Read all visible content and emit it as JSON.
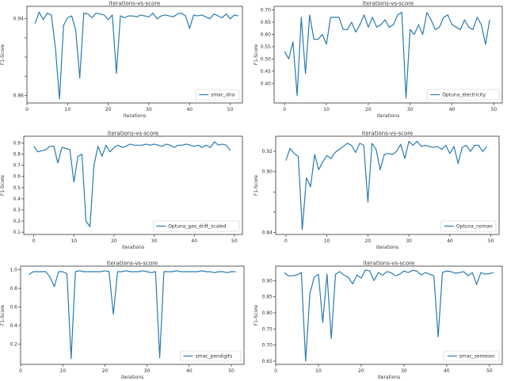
{
  "colors": {
    "line": "#2a7ab0",
    "axis": "#333333"
  },
  "chart_data": [
    {
      "type": "line",
      "title": "iterations-vs-score",
      "xlabel": "iterations",
      "ylabel": "F1-Score",
      "legend": {
        "label": "smac_dna",
        "placement": "bottom-right"
      },
      "xlim": [
        0,
        53
      ],
      "ylim": [
        0.852,
        0.953
      ],
      "xticks": [
        0,
        10,
        20,
        30,
        40,
        50
      ],
      "xtick_labels": [
        "0",
        "10",
        "20",
        "30",
        "40",
        "50"
      ],
      "yticks": [
        0.86,
        0.88,
        0.9,
        0.92,
        0.94
      ],
      "ytick_labels": [
        "0.86",
        "",
        "",
        "",
        "0.94"
      ],
      "x": [
        2,
        3,
        4,
        5,
        6,
        7,
        8,
        9,
        10,
        11,
        12,
        13,
        14,
        15,
        16,
        17,
        18,
        19,
        20,
        21,
        22,
        23,
        24,
        25,
        26,
        27,
        28,
        29,
        30,
        31,
        32,
        33,
        34,
        35,
        36,
        37,
        38,
        39,
        40,
        41,
        42,
        43,
        44,
        45,
        46,
        47,
        48,
        49,
        50,
        51,
        52
      ],
      "values": [
        0.935,
        0.947,
        0.939,
        0.946,
        0.944,
        0.91,
        0.856,
        0.933,
        0.941,
        0.943,
        0.928,
        0.878,
        0.946,
        0.945,
        0.941,
        0.946,
        0.945,
        0.944,
        0.939,
        0.944,
        0.883,
        0.943,
        0.941,
        0.943,
        0.943,
        0.942,
        0.944,
        0.943,
        0.942,
        0.946,
        0.94,
        0.943,
        0.944,
        0.943,
        0.942,
        0.945,
        0.946,
        0.943,
        0.93,
        0.944,
        0.943,
        0.944,
        0.942,
        0.94,
        0.945,
        0.943,
        0.941,
        0.945,
        0.94,
        0.944,
        0.943
      ]
    },
    {
      "type": "line",
      "title": "iterations-vs-score",
      "xlabel": "iterations",
      "ylabel": "F1-Score",
      "legend": {
        "label": "Optuna_electricity",
        "placement": "bottom-right"
      },
      "xlim": [
        -2.5,
        52
      ],
      "ylim": [
        0.32,
        0.715
      ],
      "xticks": [
        0,
        10,
        20,
        30,
        40,
        50
      ],
      "xtick_labels": [
        "0",
        "10",
        "20",
        "30",
        "40",
        "50"
      ],
      "yticks": [
        0.4,
        0.45,
        0.5,
        0.55,
        0.6,
        0.65,
        0.7
      ],
      "ytick_labels": [
        "0.40",
        "0.45",
        "0.50",
        "0.55",
        "0.60",
        "0.65",
        "0.70"
      ],
      "x": [
        0,
        1,
        2,
        3,
        4,
        5,
        6,
        7,
        8,
        9,
        10,
        11,
        12,
        13,
        14,
        15,
        16,
        17,
        18,
        19,
        20,
        21,
        22,
        23,
        24,
        25,
        26,
        27,
        28,
        29,
        30,
        31,
        32,
        33,
        34,
        35,
        36,
        37,
        38,
        39,
        40,
        41,
        42,
        43,
        44,
        45,
        46,
        47,
        48,
        49
      ],
      "values": [
        0.53,
        0.5,
        0.57,
        0.35,
        0.67,
        0.44,
        0.68,
        0.58,
        0.58,
        0.6,
        0.56,
        0.67,
        0.67,
        0.67,
        0.62,
        0.62,
        0.65,
        0.61,
        0.64,
        0.68,
        0.63,
        0.67,
        0.63,
        0.64,
        0.66,
        0.63,
        0.64,
        0.68,
        0.69,
        0.34,
        0.62,
        0.6,
        0.64,
        0.6,
        0.69,
        0.66,
        0.62,
        0.63,
        0.67,
        0.68,
        0.64,
        0.63,
        0.62,
        0.66,
        0.63,
        0.62,
        0.67,
        0.64,
        0.56,
        0.66
      ]
    },
    {
      "type": "line",
      "title": "iterations-vs-score",
      "xlabel": "iterations",
      "ylabel": "F1-Score",
      "legend": {
        "label": "Optuna_gas_drift_scaled",
        "placement": "bottom-right"
      },
      "xlim": [
        -2.5,
        52
      ],
      "ylim": [
        0.08,
        0.96
      ],
      "xticks": [
        0,
        10,
        20,
        30,
        40,
        50
      ],
      "xtick_labels": [
        "0",
        "10",
        "20",
        "30",
        "40",
        "50"
      ],
      "yticks": [
        0.1,
        0.2,
        0.3,
        0.4,
        0.5,
        0.6,
        0.7,
        0.8,
        0.9
      ],
      "ytick_labels": [
        "0.1",
        "0.2",
        "0.3",
        "0.4",
        "0.5",
        "0.6",
        "0.7",
        "0.8",
        "0.9"
      ],
      "x": [
        0,
        1,
        2,
        3,
        4,
        5,
        6,
        7,
        8,
        9,
        10,
        11,
        12,
        13,
        14,
        15,
        16,
        17,
        18,
        19,
        20,
        21,
        22,
        23,
        24,
        25,
        26,
        27,
        28,
        29,
        30,
        31,
        32,
        33,
        34,
        35,
        36,
        37,
        38,
        39,
        40,
        41,
        42,
        43,
        44,
        45,
        46,
        47,
        48,
        49
      ],
      "values": [
        0.87,
        0.82,
        0.83,
        0.84,
        0.87,
        0.87,
        0.72,
        0.86,
        0.85,
        0.84,
        0.55,
        0.78,
        0.8,
        0.2,
        0.15,
        0.7,
        0.87,
        0.78,
        0.88,
        0.82,
        0.86,
        0.88,
        0.86,
        0.87,
        0.89,
        0.88,
        0.88,
        0.88,
        0.89,
        0.88,
        0.89,
        0.88,
        0.87,
        0.89,
        0.88,
        0.86,
        0.88,
        0.88,
        0.89,
        0.88,
        0.87,
        0.88,
        0.86,
        0.88,
        0.86,
        0.91,
        0.88,
        0.89,
        0.88,
        0.83
      ]
    },
    {
      "type": "line",
      "title": "iterations-vs-score",
      "xlabel": "iterations",
      "ylabel": "F1-Score",
      "legend": {
        "label": "Optuna_nomao",
        "placement": "bottom-right"
      },
      "xlim": [
        -2.5,
        52
      ],
      "ylim": [
        0.838,
        0.935
      ],
      "xticks": [
        0,
        10,
        20,
        30,
        40,
        50
      ],
      "xtick_labels": [
        "0",
        "10",
        "20",
        "30",
        "40",
        "50"
      ],
      "yticks": [
        0.84,
        0.86,
        0.88,
        0.9,
        0.92
      ],
      "ytick_labels": [
        "0.84",
        "",
        "",
        "0.90",
        "0.92"
      ],
      "x": [
        0,
        1,
        2,
        3,
        4,
        5,
        6,
        7,
        8,
        9,
        10,
        11,
        12,
        13,
        14,
        15,
        16,
        17,
        18,
        19,
        20,
        21,
        22,
        23,
        24,
        25,
        26,
        27,
        28,
        29,
        30,
        31,
        32,
        33,
        34,
        35,
        36,
        37,
        38,
        39,
        40,
        41,
        42,
        43,
        44,
        45,
        46,
        47,
        48,
        49
      ],
      "values": [
        0.911,
        0.923,
        0.918,
        0.915,
        0.843,
        0.894,
        0.885,
        0.917,
        0.902,
        0.91,
        0.916,
        0.913,
        0.919,
        0.922,
        0.925,
        0.928,
        0.926,
        0.919,
        0.928,
        0.926,
        0.87,
        0.928,
        0.922,
        0.902,
        0.917,
        0.918,
        0.917,
        0.92,
        0.927,
        0.913,
        0.93,
        0.926,
        0.93,
        0.925,
        0.926,
        0.925,
        0.924,
        0.925,
        0.922,
        0.926,
        0.918,
        0.925,
        0.908,
        0.924,
        0.926,
        0.92,
        0.926,
        0.926,
        0.92,
        0.925
      ]
    },
    {
      "type": "line",
      "title": "iterations-vs-score",
      "xlabel": "iterations",
      "ylabel": "F1-Score",
      "legend": {
        "label": "smac_pendigits",
        "placement": "bottom-right"
      },
      "xlim": [
        0,
        53
      ],
      "ylim": [
        -0.02,
        1.04
      ],
      "xticks": [
        0,
        10,
        20,
        30,
        40,
        50
      ],
      "xtick_labels": [
        "0",
        "10",
        "20",
        "30",
        "40",
        "50"
      ],
      "yticks": [
        0.2,
        0.4,
        0.6,
        0.8,
        1.0
      ],
      "ytick_labels": [
        "0.2",
        "0.4",
        "0.6",
        "0.8",
        "1.0"
      ],
      "x": [
        2,
        3,
        4,
        5,
        6,
        7,
        8,
        9,
        10,
        11,
        12,
        13,
        14,
        15,
        16,
        17,
        18,
        19,
        20,
        21,
        22,
        23,
        24,
        25,
        26,
        27,
        28,
        29,
        30,
        31,
        32,
        33,
        34,
        35,
        36,
        37,
        38,
        39,
        40,
        41,
        42,
        43,
        44,
        45,
        46,
        47,
        48,
        49,
        50,
        51
      ],
      "values": [
        0.95,
        0.98,
        0.98,
        0.98,
        0.98,
        0.92,
        0.82,
        0.98,
        0.98,
        0.96,
        0.04,
        0.98,
        0.99,
        0.98,
        0.98,
        0.98,
        0.98,
        0.98,
        0.99,
        0.98,
        0.52,
        0.98,
        0.98,
        0.99,
        0.98,
        0.98,
        0.98,
        0.99,
        0.98,
        0.97,
        0.98,
        0.05,
        0.98,
        0.98,
        0.98,
        0.99,
        0.98,
        0.98,
        0.98,
        0.98,
        0.98,
        0.99,
        0.98,
        0.98,
        0.97,
        0.98,
        0.98,
        0.97,
        0.98,
        0.98
      ]
    },
    {
      "type": "line",
      "title": "iterations-vs-score",
      "xlabel": "iterations",
      "ylabel": "F1-Score",
      "legend": {
        "label": "smac_semeion",
        "placement": "bottom-right"
      },
      "xlim": [
        0,
        53
      ],
      "ylim": [
        0.64,
        0.945
      ],
      "xticks": [
        0,
        10,
        20,
        30,
        40,
        50
      ],
      "xtick_labels": [
        "0",
        "10",
        "20",
        "30",
        "40",
        "50"
      ],
      "yticks": [
        0.65,
        0.7,
        0.75,
        0.8,
        0.85,
        0.9
      ],
      "ytick_labels": [
        "0.65",
        "0.70",
        "0.75",
        "0.80",
        "0.85",
        "0.90"
      ],
      "x": [
        2,
        3,
        4,
        5,
        6,
        7,
        8,
        9,
        10,
        11,
        12,
        13,
        14,
        15,
        16,
        17,
        18,
        19,
        20,
        21,
        22,
        23,
        24,
        25,
        26,
        27,
        28,
        29,
        30,
        31,
        32,
        33,
        34,
        35,
        36,
        37,
        38,
        39,
        40,
        41,
        42,
        43,
        44,
        45,
        46,
        47,
        48,
        49,
        50,
        51
      ],
      "values": [
        0.925,
        0.915,
        0.915,
        0.918,
        0.925,
        0.65,
        0.86,
        0.91,
        0.92,
        0.77,
        0.92,
        0.72,
        0.92,
        0.928,
        0.917,
        0.91,
        0.89,
        0.917,
        0.908,
        0.933,
        0.93,
        0.9,
        0.925,
        0.917,
        0.928,
        0.925,
        0.915,
        0.92,
        0.93,
        0.925,
        0.932,
        0.93,
        0.918,
        0.925,
        0.92,
        0.915,
        0.725,
        0.925,
        0.93,
        0.928,
        0.923,
        0.925,
        0.928,
        0.915,
        0.925,
        0.888,
        0.925,
        0.92,
        0.922,
        0.925
      ]
    }
  ]
}
